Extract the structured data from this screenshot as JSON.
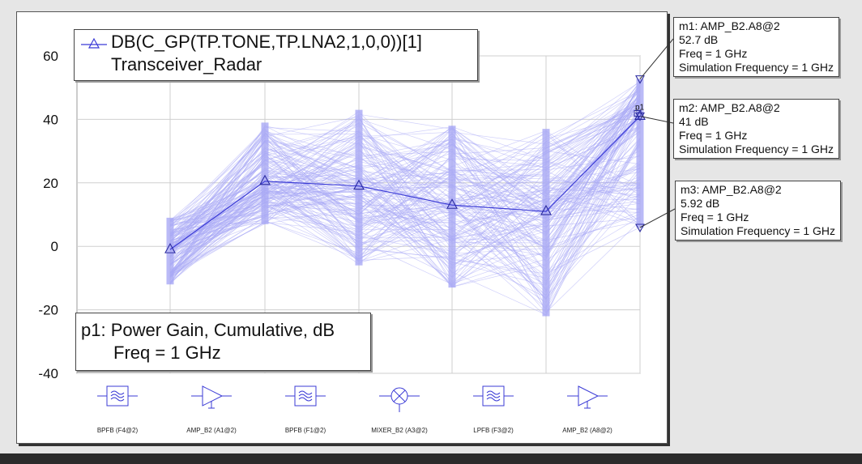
{
  "legend": {
    "series_label": "DB(C_GP(TP.TONE,TP.LNA2,1,0,0))[1]",
    "project_label": "Transceiver_Radar"
  },
  "info": {
    "line1": "p1: Power Gain, Cumulative, dB",
    "line2": "Freq = 1 GHz"
  },
  "markers": [
    {
      "id": "m1",
      "title": "m1: AMP_B2.A8@2",
      "value": "52.7 dB",
      "freq": "Freq = 1 GHz",
      "sim": "Simulation Frequency = 1 GHz",
      "y": 52.7
    },
    {
      "id": "m2",
      "title": "m2: AMP_B2.A8@2",
      "value": "41 dB",
      "freq": "Freq = 1 GHz",
      "sim": "Simulation Frequency = 1 GHz",
      "y": 41
    },
    {
      "id": "m3",
      "title": "m3: AMP_B2.A8@2",
      "value": "5.92 dB",
      "freq": "Freq = 1 GHz",
      "sim": "Simulation Frequency = 1 GHz",
      "y": 5.92
    }
  ],
  "p1_label": "p1",
  "components": [
    {
      "label": "BPFB (F4@2)",
      "icon": "bandpass-filter-icon"
    },
    {
      "label": "AMP_B2 (A1@2)",
      "icon": "amplifier-icon"
    },
    {
      "label": "BPFB (F1@2)",
      "icon": "bandpass-filter-icon"
    },
    {
      "label": "MIXER_B2 (A3@2)",
      "icon": "mixer-icon"
    },
    {
      "label": "LPFB (F3@2)",
      "icon": "lowpass-filter-icon"
    },
    {
      "label": "AMP_B2 (A8@2)",
      "icon": "amplifier-icon"
    }
  ],
  "colors": {
    "main_series": "#3b3bd6",
    "monte_carlo": "#a9a9f5"
  },
  "chart_data": {
    "type": "line",
    "categories": [
      "BPFB (F4@2)",
      "AMP_B2 (A1@2)",
      "BPFB (F1@2)",
      "MIXER_B2 (A3@2)",
      "LPFB (F3@2)",
      "AMP_B2 (A8@2)"
    ],
    "series": [
      {
        "name": "DB(C_GP(TP.TONE,TP.LNA2,1,0,0))[1]",
        "values": [
          -1,
          20.5,
          19,
          13,
          11,
          41
        ]
      }
    ],
    "spread": {
      "min": [
        -12,
        7,
        -6,
        -13,
        -22,
        5.92
      ],
      "max": [
        9,
        39,
        43,
        38,
        37,
        52.7
      ]
    },
    "ylim": [
      -40,
      60
    ],
    "yticks": [
      -40,
      -20,
      0,
      20,
      40,
      60
    ],
    "grid": true,
    "legend": "top-left",
    "ylabel": "",
    "xlabel": ""
  }
}
